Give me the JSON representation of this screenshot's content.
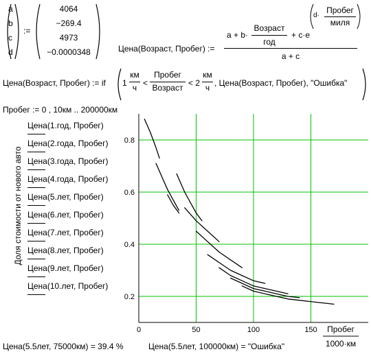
{
  "params": {
    "names": [
      "a",
      "b",
      "c",
      "d"
    ],
    "assign": ":=",
    "values": [
      "4064",
      "−269.4",
      "4973",
      "−0.0000348"
    ]
  },
  "formula1": {
    "lhs": "Цена(Возраст, Пробег) :=",
    "num_a": "a + b·",
    "vozrast": "Возраст",
    "god": "год",
    "plus_c": "+ c·e",
    "d_dot": "d·",
    "probeg": "Пробег",
    "milya": "миля",
    "den": "a + c"
  },
  "formula2": {
    "lhs": "Цена(Возраст, Пробег) := if",
    "one": "1",
    "km": "км",
    "ch": "ч",
    "lt1": "<",
    "probeg": "Пробег",
    "vozrast": "Возраст",
    "lt2": "< 2",
    "tail": ", Цена(Возраст, Пробег), \"Ошибка\""
  },
  "range_def": "Пробег := 0 , 10км .. 200000км",
  "legend": [
    "Цена(1.год, Пробег)",
    "Цена(2.года, Пробег)",
    "Цена(3.года, Пробег)",
    "Цена(4.года, Пробег)",
    "Цена(5.лет, Пробег)",
    "Цена(6.лет, Пробег)",
    "Цена(7.лет, Пробег)",
    "Цена(8.лет, Пробег)",
    "Цена(9.лет, Пробег)",
    "Цена(10.лет, Пробег)"
  ],
  "chart_data": {
    "type": "line",
    "ylabel": "Доля стоимости от нового авто",
    "xlabel_num": "Пробег",
    "xlabel_den": "1000·км",
    "xlim": [
      0,
      200
    ],
    "ylim": [
      0.1,
      0.9
    ],
    "x_ticks": [
      0,
      50,
      100,
      150
    ],
    "y_ticks": [
      0.2,
      0.4,
      0.6,
      0.8
    ],
    "grid": true,
    "grid_color": "#00c000",
    "line_color": "#000000",
    "series": [
      {
        "name": "Цена(1.год, Пробег)",
        "x": [
          5,
          10,
          15,
          18
        ],
        "y": [
          0.88,
          0.83,
          0.77,
          0.73
        ]
      },
      {
        "name": "Цена(2.года, Пробег)",
        "x": [
          15,
          20,
          25,
          30,
          35
        ],
        "y": [
          0.71,
          0.66,
          0.61,
          0.57,
          0.53
        ]
      },
      {
        "name": "Цена(3.года, Пробег)",
        "x": [
          25,
          30,
          35
        ],
        "y": [
          0.59,
          0.55,
          0.52
        ]
      },
      {
        "name": "Цена(4.года, Пробег)",
        "x": [
          33,
          40,
          45,
          50,
          55
        ],
        "y": [
          0.67,
          0.6,
          0.56,
          0.52,
          0.49
        ]
      },
      {
        "name": "Цена(5.лет, Пробег)",
        "x": [
          40,
          50,
          60,
          70
        ],
        "y": [
          0.54,
          0.49,
          0.45,
          0.41
        ]
      },
      {
        "name": "Цена(6.лет, Пробег)",
        "x": [
          50,
          60,
          70,
          80,
          90
        ],
        "y": [
          0.45,
          0.41,
          0.37,
          0.34,
          0.31
        ]
      },
      {
        "name": "Цена(7.лет, Пробег)",
        "x": [
          60,
          70,
          80,
          90,
          100,
          110
        ],
        "y": [
          0.36,
          0.33,
          0.3,
          0.28,
          0.26,
          0.25
        ]
      },
      {
        "name": "Цена(8.лет, Пробег)",
        "x": [
          70,
          80,
          90,
          100,
          110,
          120,
          130
        ],
        "y": [
          0.31,
          0.28,
          0.26,
          0.24,
          0.23,
          0.22,
          0.21
        ]
      },
      {
        "name": "Цена(9.лет, Пробег)",
        "x": [
          80,
          90,
          100,
          110,
          120,
          130,
          140
        ],
        "y": [
          0.27,
          0.25,
          0.23,
          0.22,
          0.21,
          0.2,
          0.195
        ]
      },
      {
        "name": "Цена(10.лет, Пробег)",
        "x": [
          90,
          100,
          110,
          120,
          130,
          140,
          150,
          160,
          170
        ],
        "y": [
          0.24,
          0.22,
          0.21,
          0.2,
          0.19,
          0.185,
          0.18,
          0.175,
          0.17
        ]
      }
    ]
  },
  "results": {
    "r1": "Цена(5.5лет, 75000км) = 39.4 %",
    "r2": "Цена(5.5лет, 100000км) = \"Ошибка\""
  }
}
